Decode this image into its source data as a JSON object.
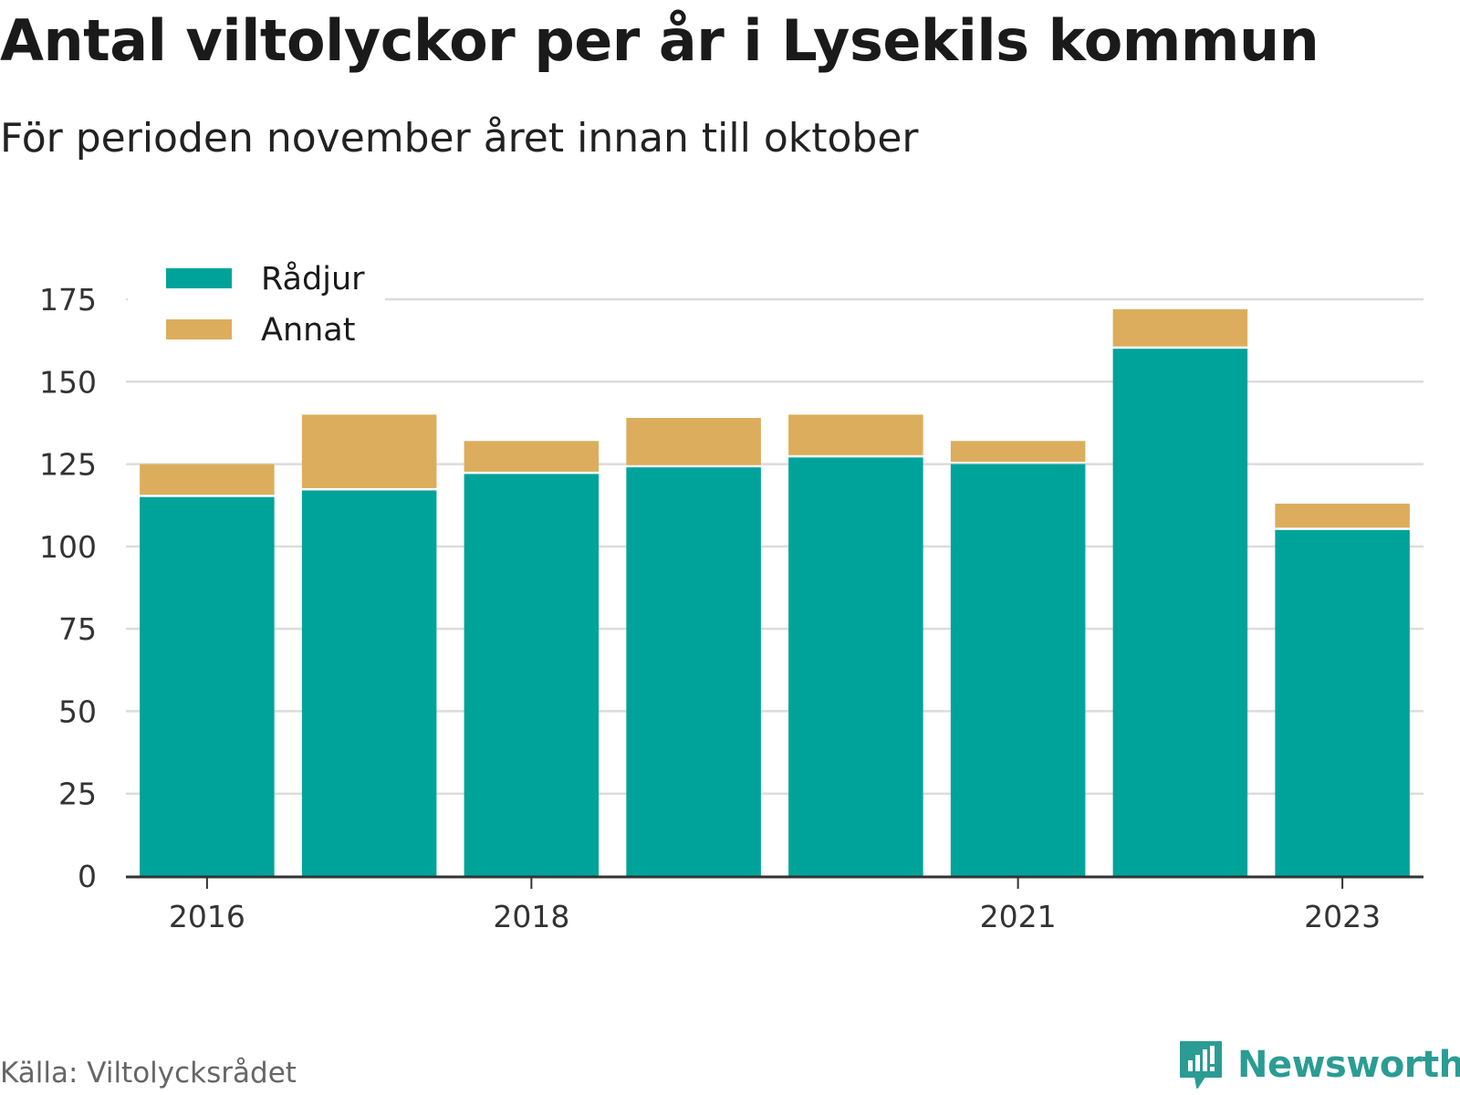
{
  "title": "Antal viltolyckor per år i Lysekils kommun",
  "subtitle": "För perioden november året innan till oktober",
  "source": "Källa: Viltolycksrådet",
  "brand": {
    "name": "Newsworthy",
    "icon": "newsworthy-logo-icon",
    "color": "#2b9c94"
  },
  "chart_data": {
    "type": "bar",
    "stacked": true,
    "categories": [
      "2016",
      "2017",
      "2018",
      "2019",
      "2020",
      "2021",
      "2022",
      "2023"
    ],
    "x_tick_labels": [
      "2016",
      "2018",
      "2021",
      "2023"
    ],
    "series": [
      {
        "name": "Rådjur",
        "color": "#00a39a",
        "values": [
          115,
          117,
          122,
          124,
          127,
          125,
          160,
          105
        ]
      },
      {
        "name": "Annat",
        "color": "#dbad5c",
        "values": [
          10,
          23,
          10,
          15,
          13,
          7,
          12,
          8
        ]
      }
    ],
    "ylim": [
      0,
      175
    ],
    "y_ticks": [
      0,
      25,
      50,
      75,
      100,
      125,
      150,
      175
    ],
    "y_tick_labels": [
      "0",
      "25",
      "50",
      "75",
      "100",
      "125",
      "150",
      "175"
    ],
    "grid": true,
    "legend_position": "top-left"
  }
}
